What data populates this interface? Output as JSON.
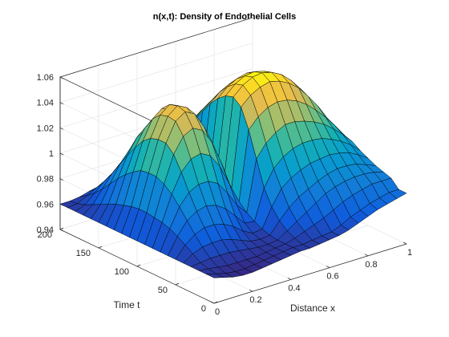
{
  "chart_data": {
    "type": "surface",
    "title": "n(x,t): Density of Endothelial Cells",
    "xlabel": "Distance x",
    "ylabel": "Time t",
    "zlabel": "",
    "xlim": [
      0,
      1
    ],
    "ylim": [
      0,
      200
    ],
    "zlim": [
      0.94,
      1.06
    ],
    "x_ticks": [
      "0",
      "0.2",
      "0.4",
      "0.6",
      "0.8",
      "1"
    ],
    "y_ticks": [
      "0",
      "50",
      "100",
      "150",
      "200"
    ],
    "z_ticks": [
      "0.94",
      "0.96",
      "0.98",
      "1",
      "1.02",
      "1.04",
      "1.06"
    ],
    "x_tick_values": [
      0,
      0.2,
      0.4,
      0.6,
      0.8,
      1
    ],
    "y_tick_values": [
      0,
      50,
      100,
      150,
      200
    ],
    "z_tick_values": [
      0.94,
      0.96,
      0.98,
      1,
      1.02,
      1.04,
      1.06
    ],
    "grid": "on",
    "colormap": "parula",
    "x": [
      0,
      0.05,
      0.1,
      0.15,
      0.2,
      0.25,
      0.3,
      0.35,
      0.4,
      0.45,
      0.5,
      0.55,
      0.6,
      0.65,
      0.7,
      0.75,
      0.8,
      0.85,
      0.9,
      0.95,
      1
    ],
    "t": [
      0,
      10,
      20,
      30,
      40,
      50,
      60,
      70,
      80,
      90,
      100,
      110,
      120,
      130,
      140,
      150,
      160,
      170,
      180,
      190,
      200
    ],
    "z": [
      [
        0.96,
        0.958,
        0.956,
        0.955,
        0.955,
        0.956,
        0.957,
        0.958,
        0.959,
        0.96,
        0.96,
        0.961,
        0.962,
        0.963,
        0.965,
        0.968,
        0.971,
        0.974,
        0.976,
        0.978,
        0.98
      ],
      [
        0.96,
        0.958,
        0.956,
        0.955,
        0.955,
        0.956,
        0.957,
        0.958,
        0.959,
        0.96,
        0.96,
        0.961,
        0.962,
        0.963,
        0.966,
        0.97,
        0.973,
        0.976,
        0.978,
        0.98,
        0.98
      ],
      [
        0.96,
        0.959,
        0.958,
        0.957,
        0.957,
        0.957,
        0.957,
        0.958,
        0.959,
        0.96,
        0.962,
        0.965,
        0.968,
        0.971,
        0.975,
        0.979,
        0.982,
        0.984,
        0.986,
        0.986,
        0.986
      ],
      [
        0.96,
        0.961,
        0.962,
        0.962,
        0.962,
        0.961,
        0.96,
        0.959,
        0.959,
        0.96,
        0.965,
        0.97,
        0.975,
        0.98,
        0.985,
        0.988,
        0.99,
        0.991,
        0.991,
        0.99,
        0.988
      ],
      [
        0.96,
        0.965,
        0.968,
        0.969,
        0.969,
        0.967,
        0.964,
        0.961,
        0.96,
        0.961,
        0.97,
        0.978,
        0.984,
        0.988,
        0.992,
        0.995,
        0.997,
        0.997,
        0.996,
        0.993,
        0.99
      ],
      [
        0.96,
        0.969,
        0.975,
        0.978,
        0.978,
        0.976,
        0.972,
        0.966,
        0.962,
        0.963,
        0.978,
        0.99,
        0.996,
        1.0,
        1.003,
        1.004,
        1.005,
        1.004,
        1.002,
        0.998,
        0.993
      ],
      [
        0.96,
        0.973,
        0.983,
        0.988,
        0.99,
        0.988,
        0.983,
        0.975,
        0.967,
        0.966,
        0.99,
        1.003,
        1.01,
        1.014,
        1.016,
        1.016,
        1.015,
        1.012,
        1.008,
        1.003,
        0.996
      ],
      [
        0.96,
        0.976,
        0.991,
        1.0,
        1.004,
        1.004,
        1.0,
        0.99,
        0.978,
        0.97,
        1.01,
        1.02,
        1.026,
        1.03,
        1.03,
        1.028,
        1.025,
        1.021,
        1.015,
        1.008,
        1.0
      ],
      [
        0.96,
        0.978,
        0.998,
        1.013,
        1.021,
        1.023,
        1.019,
        1.008,
        0.992,
        0.976,
        1.03,
        1.038,
        1.043,
        1.045,
        1.044,
        1.041,
        1.036,
        1.029,
        1.021,
        1.012,
        1.002
      ],
      [
        0.96,
        0.979,
        1.003,
        1.024,
        1.036,
        1.04,
        1.036,
        1.024,
        1.005,
        0.982,
        1.045,
        1.052,
        1.056,
        1.058,
        1.056,
        1.052,
        1.046,
        1.037,
        1.027,
        1.015,
        1.004
      ],
      [
        0.96,
        0.98,
        1.006,
        1.03,
        1.045,
        1.05,
        1.046,
        1.033,
        1.011,
        0.985,
        1.05,
        1.057,
        1.061,
        1.062,
        1.06,
        1.056,
        1.049,
        1.04,
        1.029,
        1.016,
        1.005
      ],
      [
        0.96,
        0.98,
        1.006,
        1.03,
        1.046,
        1.052,
        1.048,
        1.034,
        1.01,
        0.984,
        1.048,
        1.055,
        1.059,
        1.06,
        1.058,
        1.054,
        1.047,
        1.038,
        1.028,
        1.016,
        1.005
      ],
      [
        0.96,
        0.979,
        1.005,
        1.028,
        1.044,
        1.05,
        1.046,
        1.031,
        1.006,
        0.98,
        1.043,
        1.05,
        1.054,
        1.056,
        1.054,
        1.05,
        1.043,
        1.035,
        1.025,
        1.014,
        1.004
      ],
      [
        0.96,
        0.977,
        1.001,
        1.023,
        1.038,
        1.044,
        1.04,
        1.025,
        1.0,
        0.976,
        1.036,
        1.043,
        1.047,
        1.049,
        1.048,
        1.044,
        1.038,
        1.031,
        1.022,
        1.012,
        1.002
      ],
      [
        0.96,
        0.975,
        0.996,
        1.015,
        1.028,
        1.034,
        1.03,
        1.016,
        0.993,
        0.972,
        1.027,
        1.034,
        1.039,
        1.041,
        1.04,
        1.037,
        1.032,
        1.025,
        1.018,
        1.009,
        1.0
      ],
      [
        0.96,
        0.972,
        0.99,
        1.006,
        1.018,
        1.022,
        1.019,
        1.006,
        0.986,
        0.968,
        1.018,
        1.025,
        1.03,
        1.032,
        1.032,
        1.029,
        1.025,
        1.019,
        1.012,
        1.005,
        0.998
      ],
      [
        0.96,
        0.969,
        0.983,
        0.996,
        1.005,
        1.009,
        1.006,
        0.996,
        0.98,
        0.965,
        1.009,
        1.016,
        1.021,
        1.023,
        1.023,
        1.021,
        1.017,
        1.012,
        1.006,
        1.0,
        0.994
      ],
      [
        0.96,
        0.966,
        0.976,
        0.986,
        0.993,
        0.996,
        0.994,
        0.986,
        0.974,
        0.962,
        1.0,
        1.006,
        1.011,
        1.013,
        1.014,
        1.012,
        1.009,
        1.005,
        1.0,
        0.995,
        0.99
      ],
      [
        0.96,
        0.963,
        0.97,
        0.977,
        0.982,
        0.984,
        0.982,
        0.977,
        0.969,
        0.96,
        0.99,
        0.996,
        1.0,
        1.003,
        1.004,
        1.003,
        1.0,
        0.997,
        0.993,
        0.99,
        0.986
      ],
      [
        0.96,
        0.961,
        0.965,
        0.969,
        0.972,
        0.973,
        0.972,
        0.969,
        0.964,
        0.958,
        0.981,
        0.986,
        0.99,
        0.993,
        0.994,
        0.993,
        0.991,
        0.988,
        0.986,
        0.984,
        0.982
      ],
      [
        0.96,
        0.96,
        0.961,
        0.963,
        0.964,
        0.964,
        0.963,
        0.962,
        0.96,
        0.957,
        0.972,
        0.977,
        0.981,
        0.984,
        0.985,
        0.985,
        0.983,
        0.981,
        0.98,
        0.979,
        0.978
      ]
    ]
  }
}
